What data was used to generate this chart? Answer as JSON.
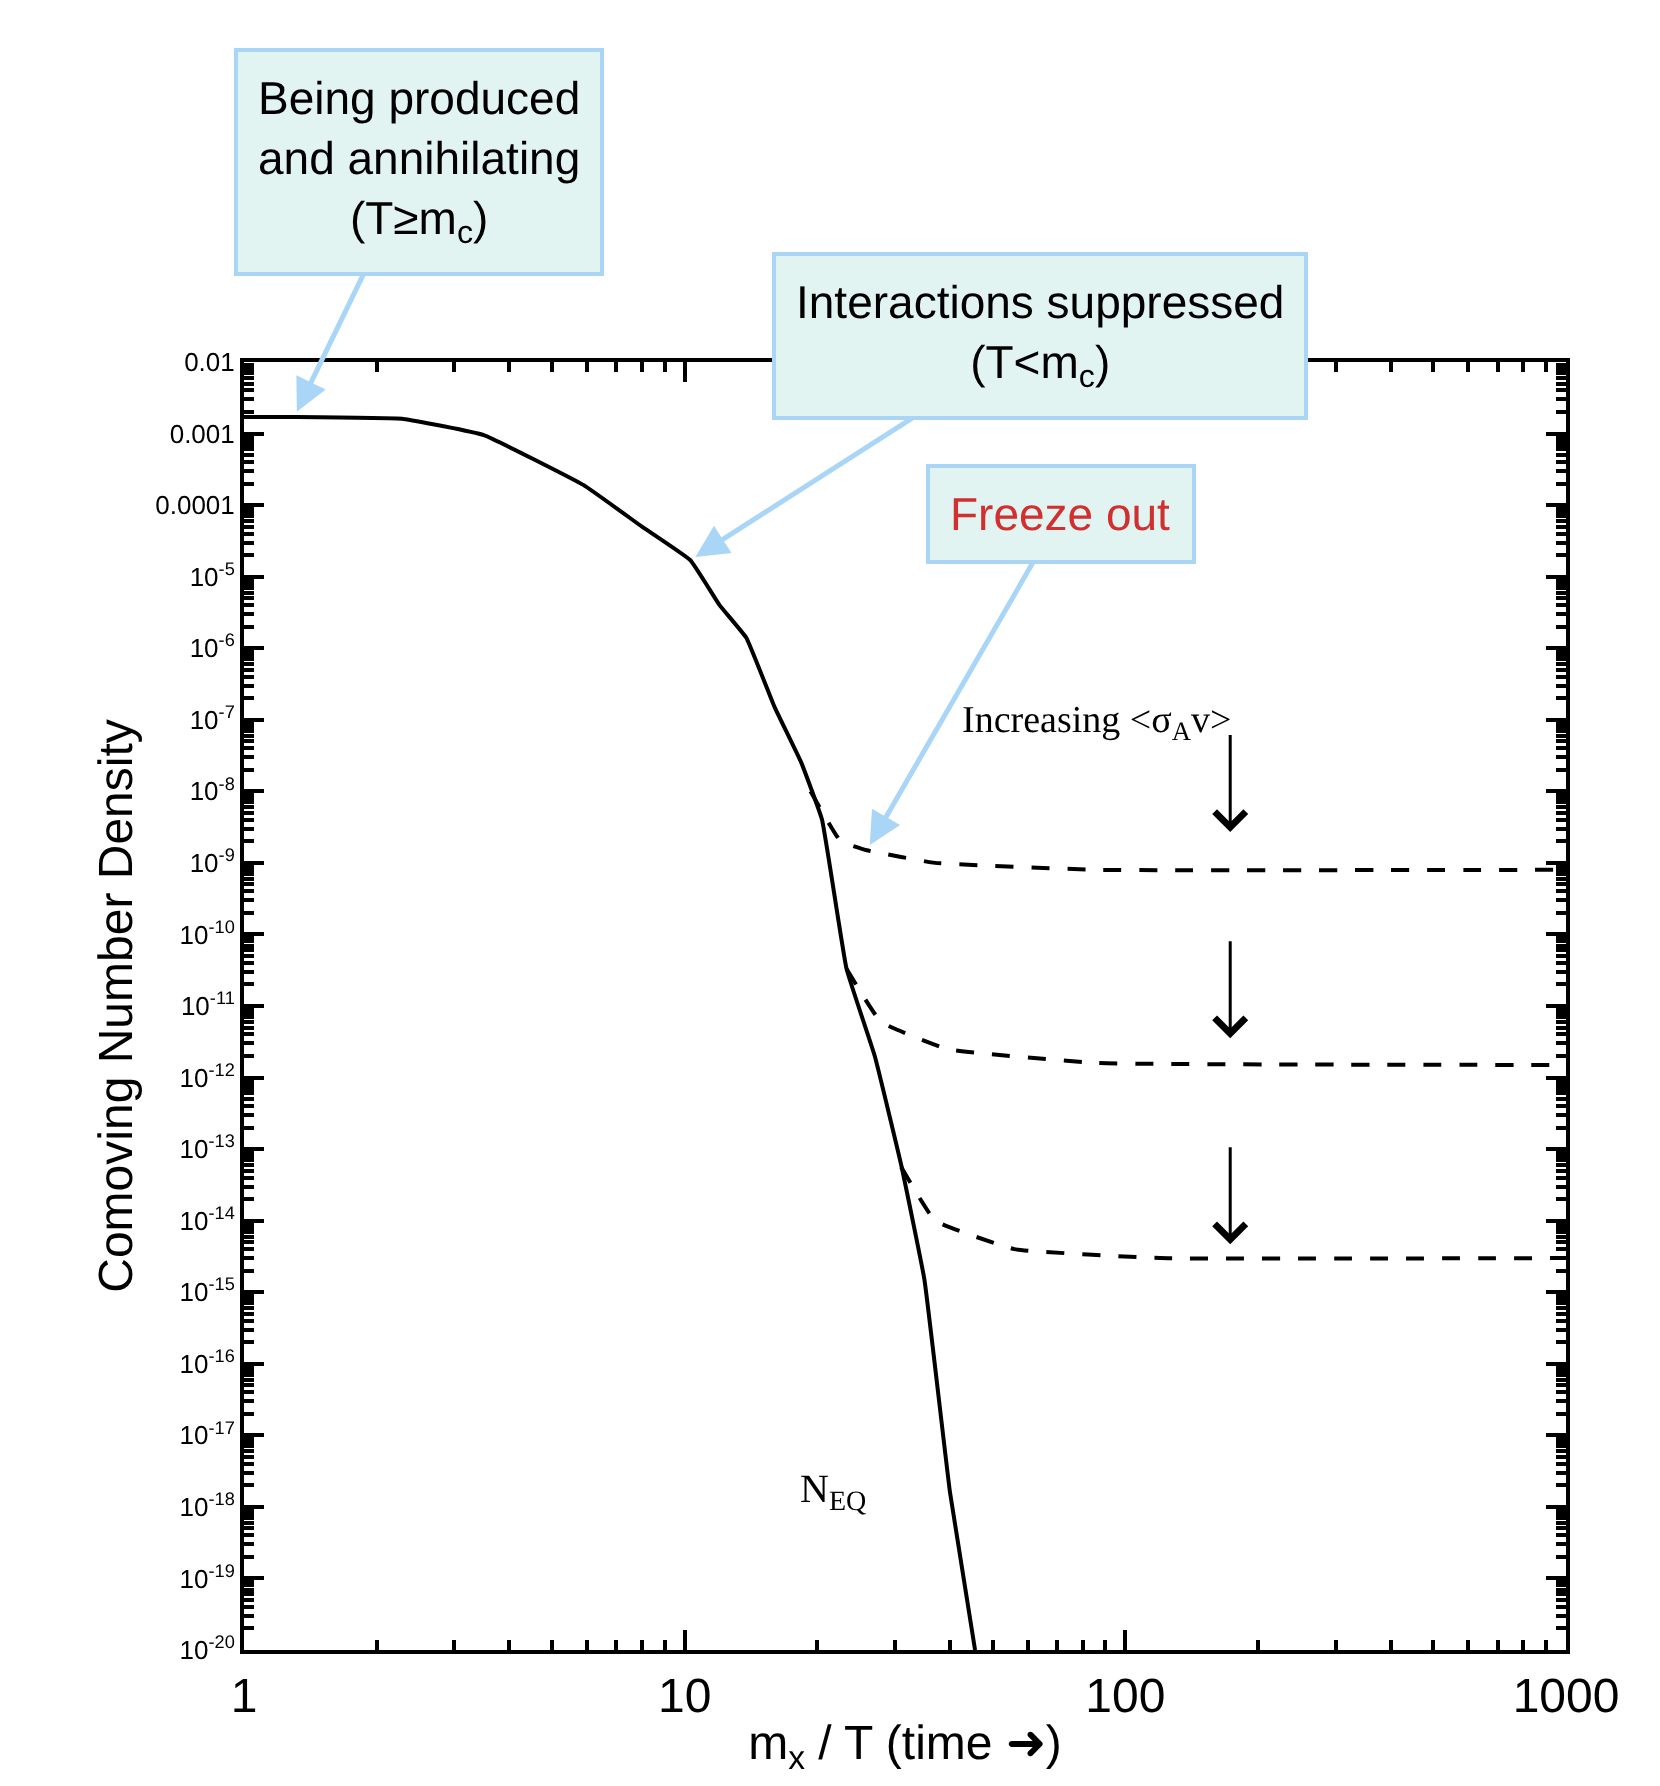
{
  "chart_data": {
    "type": "line",
    "xlabel": "m$_{x}$ / T (time ➜)",
    "ylabel": "Comoving Number Density",
    "log": "xy",
    "xlim": [
      1,
      1000
    ],
    "xticks": [
      1,
      10,
      100,
      1000
    ],
    "ylim": [
      1e-20,
      0.01
    ],
    "yticks": [
      0.01,
      0.001,
      0.0001,
      {
        "value": 1e-05,
        "label": "10$^{-5}$"
      },
      {
        "value": 1e-06,
        "label": "10$^{-6}$"
      },
      {
        "value": 1e-07,
        "label": "10$^{-7}$"
      },
      {
        "value": 1e-08,
        "label": "10$^{-8}$"
      },
      {
        "value": 1e-09,
        "label": "10$^{-9}$"
      },
      {
        "value": 1e-10,
        "label": "10$^{-10}$"
      },
      {
        "value": 1e-11,
        "label": "10$^{-11}$"
      },
      {
        "value": 1e-12,
        "label": "10$^{-12}$"
      },
      {
        "value": 1e-13,
        "label": "10$^{-13}$"
      },
      {
        "value": 1e-14,
        "label": "10$^{-14}$"
      },
      {
        "value": 1e-15,
        "label": "10$^{-15}$"
      },
      {
        "value": 1e-16,
        "label": "10$^{-16}$"
      },
      {
        "value": 1e-17,
        "label": "10$^{-17}$"
      },
      {
        "value": 1e-18,
        "label": "10$^{-18}$"
      },
      {
        "value": 1e-19,
        "label": "10$^{-19}$"
      },
      {
        "value": 1e-20,
        "label": "10$^{-20}$"
      }
    ],
    "series": [
      {
        "name": "N$_{EQ}$",
        "color": "#000000",
        "line_style": "solid",
        "x": [
          1,
          1.3,
          2.3,
          3.5,
          5.9,
          8,
          10.3,
          12,
          13.8,
          16,
          18.4,
          20.5,
          23.3,
          27,
          31,
          35,
          40,
          45.6
        ],
        "values": [
          0.0017,
          0.0017,
          0.0016,
          0.00095,
          0.00019,
          5e-05,
          1.7e-05,
          4e-06,
          1.4e-06,
          1.5e-07,
          2.5e-08,
          4e-09,
          3.3e-11,
          2e-12,
          6e-14,
          1.5e-15,
          1.6e-18,
          1e-20
        ]
      },
      {
        "color": "#000000",
        "line_style": "dashed",
        "x": [
          19.3,
          22.6,
          25.9,
          37,
          86,
          1000
        ],
        "values": [
          1e-08,
          2e-09,
          1.5e-09,
          1e-09,
          8e-10,
          8e-10
        ]
      },
      {
        "color": "#000000",
        "line_style": "dashed",
        "x": [
          23.3,
          27.9,
          39.5,
          86,
          1000
        ],
        "values": [
          3.3e-11,
          6e-12,
          2.5e-12,
          1.6e-12,
          1.5e-12
        ]
      },
      {
        "color": "#000000",
        "line_style": "dashed",
        "x": [
          31,
          37,
          56,
          120,
          1000
        ],
        "values": [
          5.6e-14,
          1e-14,
          4e-15,
          3e-15,
          3e-15
        ]
      }
    ],
    "annotations": [
      {
        "text": "Being produced\nand annihilating\n(T≥m$_{c}$)",
        "x": 1.3,
        "y": 0.0017
      },
      {
        "text": "Interactions suppressed\n(T<m$_{c}$)",
        "x": 10.3,
        "y": 1.7e-05
      },
      {
        "text": "Freeze out",
        "x": 25.9,
        "y": 1.5e-09
      },
      "Increasing <σ$_{A}$v>"
    ]
  }
}
